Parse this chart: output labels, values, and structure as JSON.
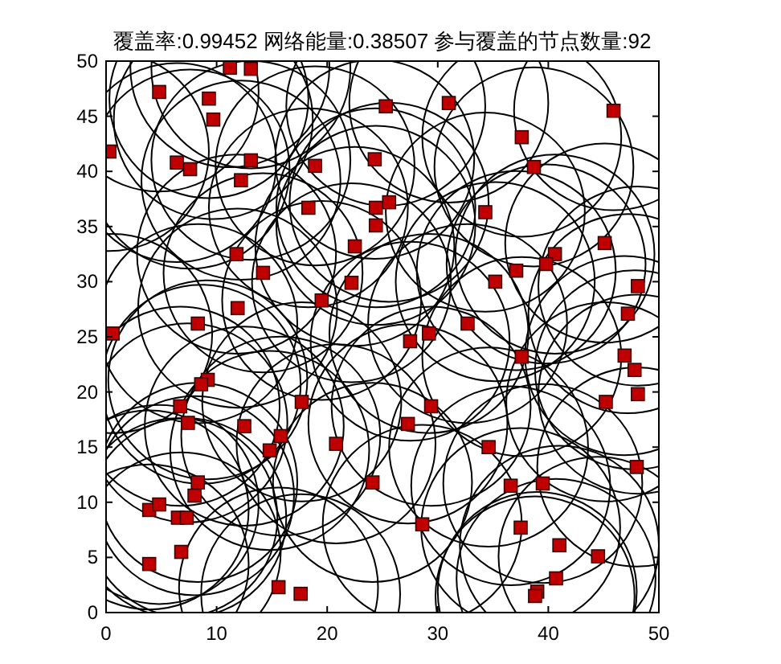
{
  "chart_data": {
    "type": "bubble",
    "title": "覆盖率:0.99452  网络能量:0.38507  参与覆盖的节点数量:92",
    "x": [
      4.8,
      9.3,
      9.7,
      0.3,
      6.4,
      7.6,
      13.1,
      12.2,
      18.9,
      24.3,
      25.3,
      18.3,
      24.4,
      24.4,
      22.5,
      11.8,
      14.2,
      22.2,
      19.5,
      11.9,
      8.3,
      0.6,
      11.2,
      13.1,
      31.0,
      45.9,
      37.6,
      38.7,
      25.6,
      34.3,
      45.1,
      40.6,
      39.8,
      37.1,
      35.2,
      48.1,
      47.2,
      32.7,
      29.2,
      9.2,
      8.6,
      6.7,
      7.4,
      17.7,
      12.5,
      15.8,
      14.8,
      20.8,
      24.1,
      8.3,
      8.0,
      3.9,
      4.8,
      6.5,
      7.3,
      6.8,
      3.9,
      15.6,
      17.6,
      27.5,
      37.6,
      46.9,
      47.8,
      48.1,
      45.2,
      29.4,
      27.3,
      34.6,
      48.0,
      36.6,
      39.5,
      28.6,
      37.5,
      41.0,
      44.5,
      40.7,
      39.0,
      38.8
    ],
    "series": [
      {
        "color": "#c00000",
        "marker": "square",
        "sizes": [
          1,
          1,
          1,
          1,
          1,
          1,
          1,
          1,
          1,
          1,
          1,
          1,
          1,
          1,
          1,
          1,
          1,
          1,
          1,
          1,
          1,
          1,
          1,
          1,
          1,
          1,
          1,
          1,
          1,
          1,
          1,
          1,
          1,
          1,
          1,
          1,
          1,
          1,
          1,
          1,
          1,
          1,
          1,
          1,
          1,
          1,
          1,
          1,
          1,
          1,
          1,
          1,
          1,
          1,
          1,
          1,
          1,
          1,
          1,
          1,
          1,
          1,
          1,
          1,
          1,
          1,
          1,
          1,
          1,
          1,
          1,
          1,
          1,
          1,
          1,
          1,
          1,
          1
        ],
        "values": [
          47.2,
          46.6,
          44.7,
          41.8,
          40.8,
          40.2,
          41.0,
          39.2,
          40.5,
          41.1,
          45.9,
          36.7,
          36.7,
          35.1,
          33.2,
          32.5,
          30.8,
          29.9,
          28.3,
          27.6,
          26.2,
          25.3,
          49.4,
          49.3,
          46.2,
          45.5,
          43.1,
          40.4,
          37.2,
          36.3,
          33.5,
          32.5,
          31.6,
          31.0,
          30.0,
          29.6,
          27.1,
          26.2,
          25.3,
          21.1,
          20.7,
          18.7,
          17.2,
          19.1,
          16.9,
          16.0,
          14.7,
          15.3,
          11.8,
          11.8,
          10.6,
          9.3,
          9.8,
          8.6,
          8.6,
          5.5,
          4.4,
          2.3,
          1.7,
          24.6,
          23.2,
          23.3,
          22.0,
          19.8,
          19.1,
          18.7,
          17.1,
          15.0,
          13.2,
          11.5,
          11.7,
          8.0,
          7.7,
          6.1,
          5.1,
          3.1,
          1.9,
          1.5
        ]
      }
    ],
    "xlim": [
      0,
      50
    ],
    "ylim": [
      0,
      50
    ],
    "xticks": [
      0,
      10,
      20,
      30,
      40,
      50
    ],
    "yticks": [
      0,
      5,
      10,
      15,
      20,
      25,
      30,
      35,
      40,
      45,
      50
    ]
  }
}
